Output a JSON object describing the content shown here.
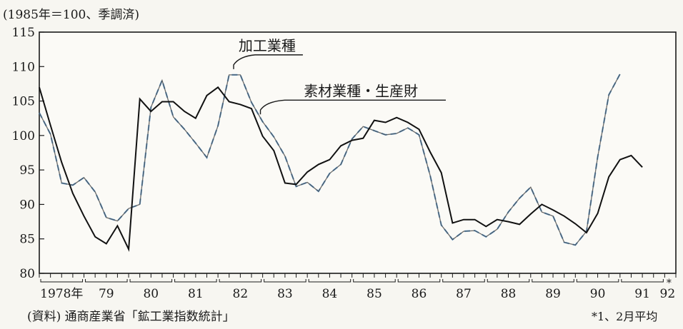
{
  "chart_data": {
    "type": "line",
    "unit_note": "(1985年＝100、季調済)",
    "source_note": "(資料) 通商産業省「鉱工業指数統計」",
    "footnote": "*1、2月平均",
    "ylim": [
      80,
      115
    ],
    "y_ticks": [
      80,
      85,
      90,
      95,
      100,
      105,
      110,
      115
    ],
    "x_start": 1978.0,
    "x_end": 1992.25,
    "x_tick_labels": [
      "1978年",
      "79",
      "80",
      "81",
      "82",
      "83",
      "84",
      "85",
      "86",
      "87",
      "88",
      "89",
      "90",
      "91",
      "92"
    ],
    "x_tick_years": [
      1978,
      1979,
      1980,
      1981,
      1982,
      1983,
      1984,
      1985,
      1986,
      1987,
      1988,
      1989,
      1990,
      1991,
      1992
    ],
    "x_tick_asterisk": "*",
    "series": [
      {
        "name": "加工業種",
        "color": "#3a3a3a",
        "dash": "none",
        "accent": "#5b9bd5",
        "x": [
          1978.0,
          1978.25,
          1978.5,
          1978.75,
          1979.0,
          1979.25,
          1979.5,
          1979.75,
          1980.0,
          1980.25,
          1980.5,
          1980.75,
          1981.0,
          1981.25,
          1981.5,
          1981.75,
          1982.0,
          1982.25,
          1982.5,
          1982.75,
          1983.0,
          1983.25,
          1983.5,
          1983.75,
          1984.0,
          1984.25,
          1984.5,
          1984.75,
          1985.0,
          1985.25,
          1985.5,
          1985.75,
          1986.0,
          1986.25,
          1986.5,
          1986.75,
          1987.0,
          1987.25,
          1987.5,
          1987.75,
          1988.0,
          1988.25,
          1988.5,
          1988.75,
          1989.0,
          1989.25,
          1989.5,
          1989.75,
          1990.0,
          1990.25,
          1990.5,
          1990.75,
          1991.0,
          1991.25,
          1991.5,
          1991.75,
          1992.0
        ],
        "values": [
          103.3,
          100.2,
          93.1,
          92.8,
          93.9,
          91.8,
          88.1,
          87.6,
          89.4,
          90.0,
          104.1,
          108.0,
          102.7,
          100.9,
          98.9,
          96.8,
          101.4,
          108.8,
          108.8,
          104.8,
          102.0,
          99.8,
          97.0,
          92.6,
          93.2,
          91.9,
          94.5,
          95.8,
          99.5,
          101.3,
          100.7,
          100.1,
          100.3,
          101.1,
          100.1,
          94.2,
          87.0,
          84.9,
          86.1,
          86.2,
          85.3,
          86.4,
          88.9,
          90.9,
          92.5,
          88.9,
          88.3,
          84.5,
          84.1,
          86.1,
          96.9,
          105.9,
          108.9,
          null,
          null,
          null,
          null
        ]
      },
      {
        "name": "素材業種・生産財",
        "color": "#111111",
        "dash": "none",
        "x": [
          1978.0,
          1978.25,
          1978.5,
          1978.75,
          1979.0,
          1979.25,
          1979.5,
          1979.75,
          1980.0,
          1980.25,
          1980.5,
          1980.75,
          1981.0,
          1981.25,
          1981.5,
          1981.75,
          1982.0,
          1982.25,
          1982.5,
          1982.75,
          1983.0,
          1983.25,
          1983.5,
          1983.75,
          1984.0,
          1984.25,
          1984.5,
          1984.75,
          1985.0,
          1985.25,
          1985.5,
          1985.75,
          1986.0,
          1986.25,
          1986.5,
          1986.75,
          1987.0,
          1987.25,
          1987.5,
          1987.75,
          1988.0,
          1988.25,
          1988.5,
          1988.75,
          1989.0,
          1989.25,
          1989.5,
          1989.75,
          1990.0,
          1990.25,
          1990.5,
          1990.75,
          1991.0,
          1991.25,
          1991.5,
          1991.75,
          1992.0
        ],
        "values": [
          107.0,
          101.5,
          96.1,
          91.6,
          88.3,
          85.3,
          84.3,
          86.9,
          83.5,
          105.3,
          103.5,
          104.9,
          104.9,
          103.5,
          102.5,
          105.8,
          107.0,
          104.9,
          104.5,
          103.9,
          99.9,
          97.8,
          93.1,
          92.9,
          94.7,
          95.8,
          96.5,
          98.5,
          99.3,
          99.6,
          102.2,
          101.9,
          102.6,
          101.9,
          100.9,
          97.6,
          94.6,
          87.3,
          87.8,
          87.8,
          86.8,
          87.8,
          87.5,
          87.1,
          88.6,
          90.0,
          89.2,
          88.3,
          87.2,
          85.9,
          88.7,
          94.0,
          96.5,
          97.1,
          95.4,
          null,
          null
        ]
      }
    ],
    "annotations": [
      {
        "text": "加工業種",
        "series": "加工業種"
      },
      {
        "text": "素材業種・生産財",
        "series": "素材業種・生産財"
      }
    ],
    "grid": false,
    "legend": "inline-callouts"
  }
}
